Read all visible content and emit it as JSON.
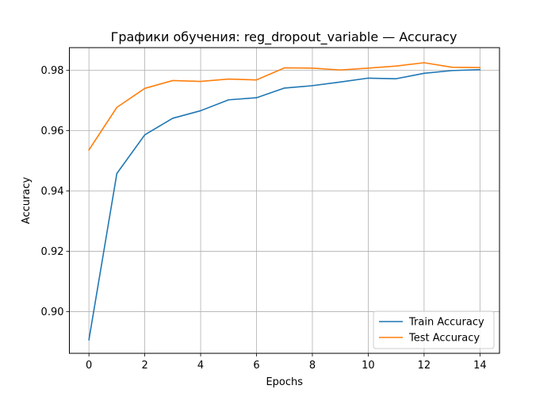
{
  "chart_data": {
    "type": "line",
    "title": "Графики обучения: reg_dropout_variable — Accuracy",
    "xlabel": "Epochs",
    "ylabel": "Accuracy",
    "xlim": [
      -0.7,
      14.7
    ],
    "ylim": [
      0.8862,
      0.9875
    ],
    "x_ticks": [
      0,
      2,
      4,
      6,
      8,
      10,
      12,
      14
    ],
    "y_ticks": [
      0.9,
      0.92,
      0.94,
      0.96,
      0.98
    ],
    "y_tick_labels": [
      "0.90",
      "0.92",
      "0.94",
      "0.96",
      "0.98"
    ],
    "grid": true,
    "legend_position": "lower-right",
    "x": [
      0,
      1,
      2,
      3,
      4,
      5,
      6,
      7,
      8,
      9,
      10,
      11,
      12,
      13,
      14
    ],
    "series": [
      {
        "name": "Train Accuracy",
        "color": "#1f77b4",
        "values": [
          0.8907,
          0.9458,
          0.9586,
          0.9641,
          0.9666,
          0.9702,
          0.9709,
          0.9741,
          0.9749,
          0.9761,
          0.9774,
          0.9772,
          0.979,
          0.9799,
          0.9802
        ]
      },
      {
        "name": "Test Accuracy",
        "color": "#ff7f0e",
        "values": [
          0.9536,
          0.9677,
          0.974,
          0.9766,
          0.9763,
          0.9771,
          0.9768,
          0.9808,
          0.9807,
          0.9801,
          0.9807,
          0.9814,
          0.9825,
          0.981,
          0.9809
        ]
      }
    ]
  }
}
